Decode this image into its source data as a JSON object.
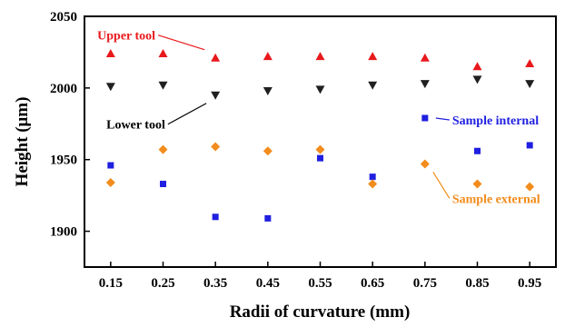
{
  "chart_data": {
    "type": "scatter",
    "title": "",
    "xlabel": "Radii of curvature (mm)",
    "ylabel": "Height (μm)",
    "x": [
      0.15,
      0.25,
      0.35,
      0.45,
      0.55,
      0.65,
      0.75,
      0.85,
      0.95
    ],
    "x_tick_labels": [
      "0.15",
      "0.25",
      "0.35",
      "0.45",
      "0.55",
      "0.65",
      "0.75",
      "0.85",
      "0.95"
    ],
    "xlim": [
      0.1,
      1.0
    ],
    "ylim": [
      1875,
      2050
    ],
    "y_ticks": [
      1900,
      1950,
      2000,
      2050
    ],
    "y_tick_labels": [
      "1900",
      "1950",
      "2000",
      "2050"
    ],
    "grid": false,
    "series": [
      {
        "name": "Upper tool",
        "marker": "triangle-up",
        "color": "#e8191c",
        "values": [
          2024,
          2024,
          2021,
          2022,
          2022,
          2022,
          2021,
          2015,
          2017
        ]
      },
      {
        "name": "Lower tool",
        "marker": "triangle-down",
        "color": "#202020",
        "values": [
          2001,
          2002,
          1995,
          1998,
          1999,
          2002,
          2003,
          2006,
          2003
        ]
      },
      {
        "name": "Sample internal",
        "marker": "square",
        "color": "#1f1fe0",
        "values": [
          1946,
          1933,
          1910,
          1909,
          1951,
          1938,
          1979,
          1956,
          1960
        ]
      },
      {
        "name": "Sample external",
        "marker": "diamond",
        "color": "#f28c1c",
        "values": [
          1934,
          1957,
          1959,
          1956,
          1957,
          1933,
          1947,
          1933,
          1931
        ]
      }
    ],
    "annotations": [
      {
        "text": "Upper tool",
        "series": 0,
        "point": 2,
        "color": "#e8191c",
        "side": "left"
      },
      {
        "text": "Lower tool",
        "series": 1,
        "point": 2,
        "color": "#000000",
        "side": "left"
      },
      {
        "text": "Sample internal",
        "series": 2,
        "point": 6,
        "color": "#1f1fe0",
        "side": "right"
      },
      {
        "text": "Sample external",
        "series": 3,
        "point": 6,
        "color": "#f28c1c",
        "side": "right"
      }
    ]
  }
}
